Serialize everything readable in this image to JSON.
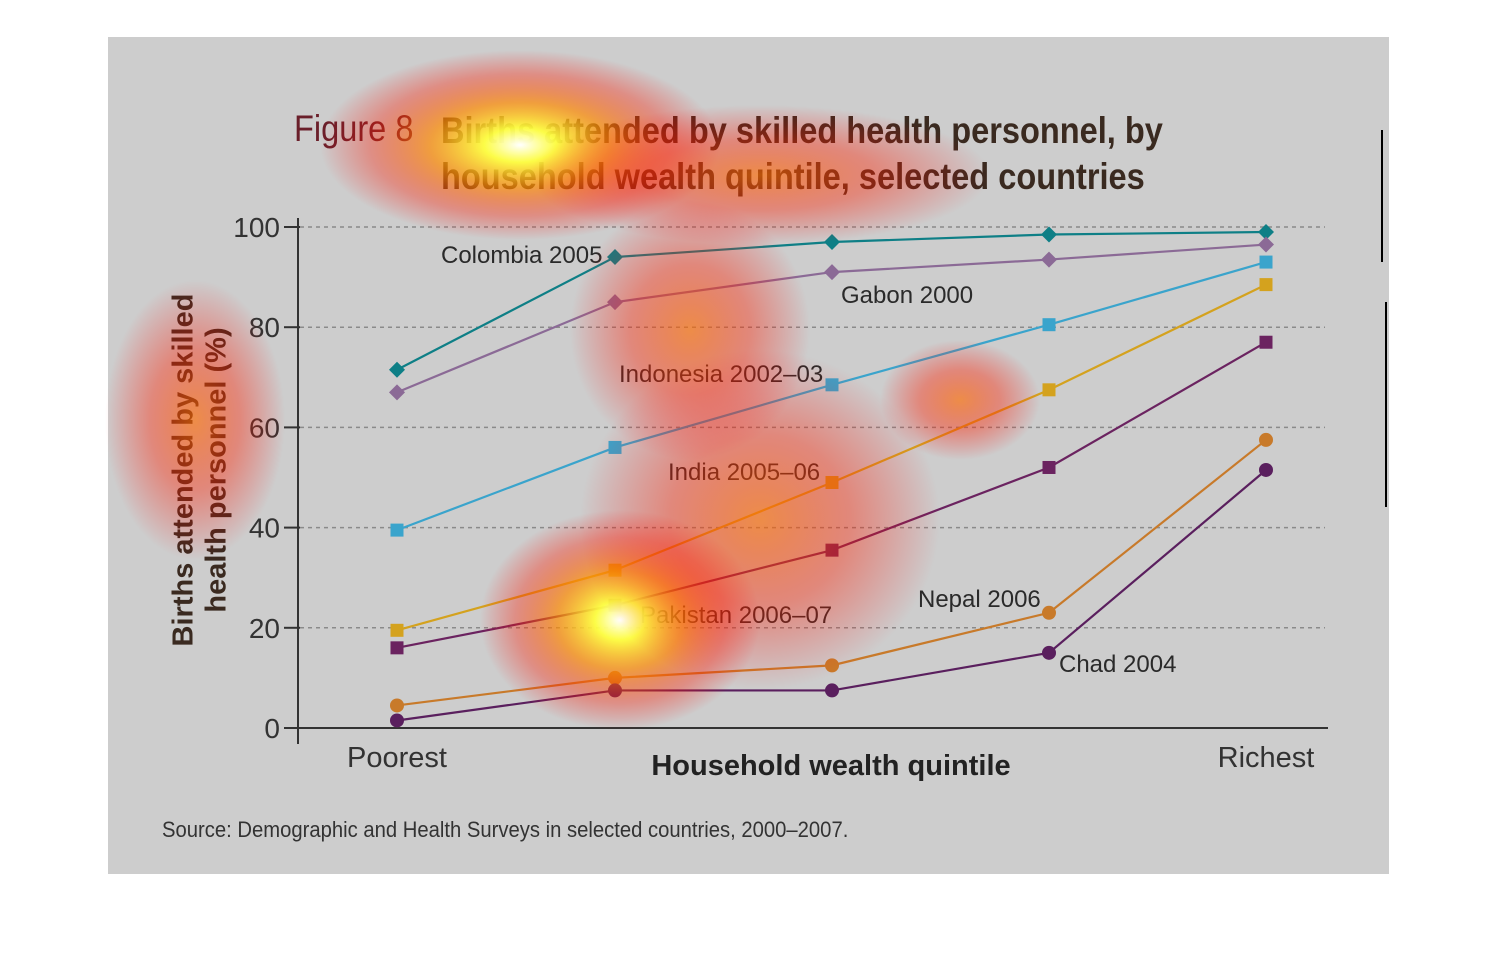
{
  "figure": {
    "label": "Figure 8",
    "title": "Births attended by skilled health personnel, by household wealth quintile, selected countries",
    "source": "Source: Demographic and Health Surveys in selected countries, 2000–2007."
  },
  "chart_data": {
    "type": "line",
    "title": "Births attended by skilled health personnel, by household wealth quintile, selected countries",
    "xlabel": "Household wealth quintile",
    "ylabel": "Births attended by skilled health personnel (%)",
    "ylim": [
      0,
      100
    ],
    "yticks": [
      0,
      20,
      40,
      60,
      80,
      100
    ],
    "categories": [
      "Poorest",
      "",
      "",
      "",
      "Richest"
    ],
    "grid": "horizontal dashed",
    "series": [
      {
        "name": "Colombia 2005",
        "marker": "diamond",
        "color": "#0e7f86",
        "values": [
          71.5,
          94,
          97,
          98.5,
          99
        ]
      },
      {
        "name": "Gabon 2000",
        "marker": "diamond",
        "color": "#8b6a96",
        "values": [
          67,
          85,
          91,
          93.5,
          96.5
        ]
      },
      {
        "name": "Indonesia 2002–03",
        "marker": "square",
        "color": "#3aa4cc",
        "values": [
          39.5,
          56,
          68.5,
          80.5,
          93
        ]
      },
      {
        "name": "India 2005–06",
        "marker": "square",
        "color": "#d4a21e",
        "values": [
          19.5,
          31.5,
          49,
          67.5,
          88.5
        ]
      },
      {
        "name": "Pakistan 2006–07",
        "marker": "square",
        "color": "#6b2360",
        "values": [
          16,
          24.5,
          35.5,
          52,
          77
        ]
      },
      {
        "name": "Nepal 2006",
        "marker": "circle",
        "color": "#c87a2a",
        "values": [
          4.5,
          10,
          12.5,
          23,
          57.5
        ]
      },
      {
        "name": "Chad 2004",
        "marker": "circle",
        "color": "#5a1f5e",
        "values": [
          1.5,
          7.5,
          7.5,
          15,
          51.5
        ]
      }
    ]
  }
}
